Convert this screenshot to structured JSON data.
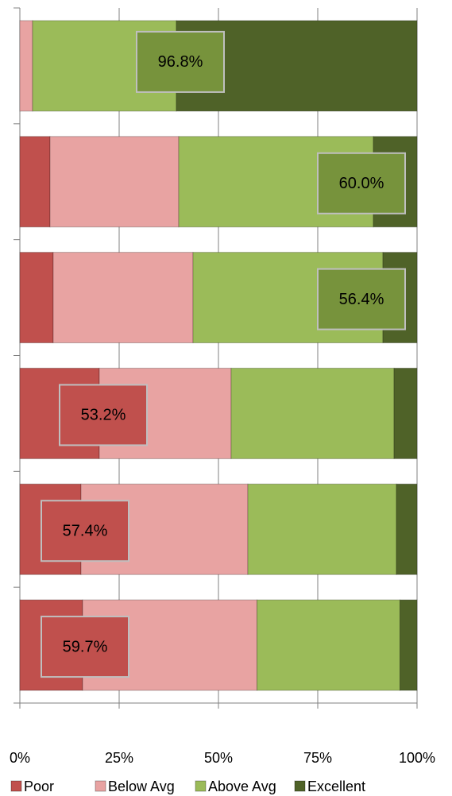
{
  "chart_data": {
    "type": "stacked-bar-horizontal",
    "categories": [
      null,
      null,
      null,
      null,
      null,
      null
    ],
    "series": [
      {
        "name": "Poor",
        "color": "#c0504d",
        "values": [
          0,
          7.6,
          8.4,
          20,
          15.4,
          15.8
        ]
      },
      {
        "name": "Below Avg",
        "color": "#e8a3a2",
        "values": [
          3.2,
          32.4,
          35.2,
          33.2,
          42,
          43.9
        ]
      },
      {
        "name": "Above Avg",
        "color": "#9bbb59",
        "values": [
          36.2,
          49,
          47.8,
          41,
          37.4,
          36
        ]
      },
      {
        "name": "Excellent",
        "color": "#4f6228",
        "values": [
          60.6,
          11,
          8.6,
          5.8,
          5.2,
          4.3
        ]
      }
    ],
    "annotations": [
      "96.8%",
      "60.0%",
      "56.4%",
      "53.2%",
      "57.4%",
      "59.7%"
    ],
    "annotation_colors": [
      "#77933c",
      "#77933c",
      "#77933c",
      "#c0504d",
      "#c0504d",
      "#c0504d"
    ],
    "xlim": [
      0,
      100
    ],
    "xticks": [
      {
        "value": 0,
        "label": "0%"
      },
      {
        "value": 25,
        "label": "25%"
      },
      {
        "value": 50,
        "label": "50%"
      },
      {
        "value": 75,
        "label": "75%"
      },
      {
        "value": 100,
        "label": "100%"
      }
    ],
    "grid": true,
    "legend": "bottom"
  }
}
